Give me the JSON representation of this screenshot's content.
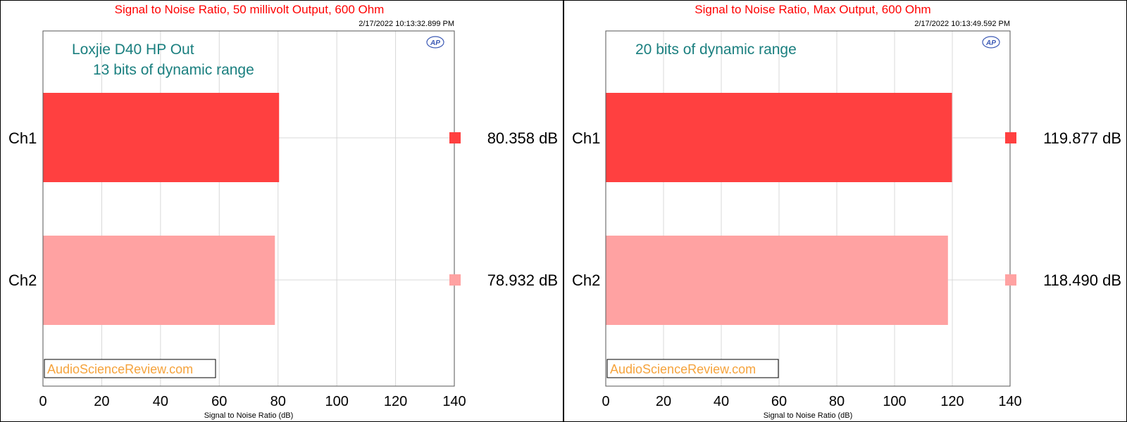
{
  "colors": {
    "title": "#ff0000",
    "annotation": "#1a7f7f",
    "ch1": "#ff4040",
    "ch2": "#ffa2a2",
    "grid": "#d8d8d8",
    "watermark": "#f5a33c",
    "ap_logo": "#3a58b4"
  },
  "chart_data": [
    {
      "type": "bar",
      "orientation": "horizontal",
      "title": "Signal to Noise Ratio, 50 millivolt Output, 600 Ohm",
      "timestamp": "2/17/2022 10:13:32.899 PM",
      "annotations": [
        "Loxjie D40 HP Out",
        "13 bits of dynamic range"
      ],
      "categories": [
        "Ch1",
        "Ch2"
      ],
      "values": [
        80.358,
        78.932
      ],
      "value_labels": [
        "80.358  dB",
        "78.932  dB"
      ],
      "xlabel": "Signal to Noise Ratio (dB)",
      "xlim": [
        0,
        140
      ],
      "xticks": [
        "0",
        "20",
        "40",
        "60",
        "80",
        "100",
        "120",
        "140"
      ],
      "grid": true,
      "logo": "AP",
      "watermark": "AudioScienceReview.com"
    },
    {
      "type": "bar",
      "orientation": "horizontal",
      "title": "Signal to Noise Ratio, Max Output, 600 Ohm",
      "timestamp": "2/17/2022 10:13:49.592 PM",
      "annotations": [
        "20 bits of dynamic range"
      ],
      "categories": [
        "Ch1",
        "Ch2"
      ],
      "values": [
        119.877,
        118.49
      ],
      "value_labels": [
        "119.877  dB",
        "118.490  dB"
      ],
      "xlabel": "Signal to Noise Ratio (dB)",
      "xlim": [
        0,
        140
      ],
      "xticks": [
        "0",
        "20",
        "40",
        "60",
        "80",
        "100",
        "120",
        "140"
      ],
      "grid": true,
      "logo": "AP",
      "watermark": "AudioScienceReview.com"
    }
  ]
}
